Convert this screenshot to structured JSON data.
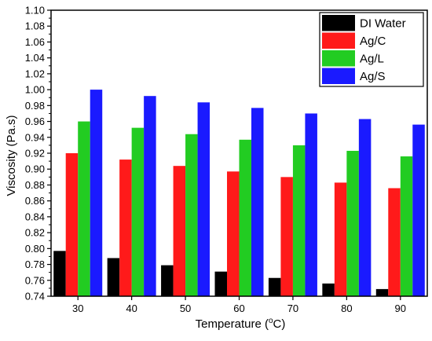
{
  "chart_data": {
    "type": "bar",
    "xlabel": "Temperature (°C)",
    "xlabel_parts": {
      "pre": "Temperature (",
      "sup": "o",
      "post": "C)"
    },
    "ylabel": "Viscosity (Pa.s)",
    "ylim": [
      0.74,
      1.1
    ],
    "y_ticks": [
      "0.74",
      "0.76",
      "0.78",
      "0.80",
      "0.82",
      "0.84",
      "0.86",
      "0.88",
      "0.90",
      "0.92",
      "0.94",
      "0.96",
      "0.98",
      "1.00",
      "1.02",
      "1.04",
      "1.06",
      "1.08",
      "1.10"
    ],
    "categories": [
      "30",
      "40",
      "50",
      "60",
      "70",
      "80",
      "90"
    ],
    "series": [
      {
        "name": "DI Water",
        "color": "#000000",
        "values": [
          0.797,
          0.788,
          0.779,
          0.771,
          0.763,
          0.756,
          0.749
        ]
      },
      {
        "name": "Ag/C",
        "color": "#ff1a1a",
        "values": [
          0.92,
          0.912,
          0.904,
          0.897,
          0.89,
          0.883,
          0.876
        ]
      },
      {
        "name": "Ag/L",
        "color": "#22cc22",
        "values": [
          0.96,
          0.952,
          0.944,
          0.937,
          0.93,
          0.923,
          0.916
        ]
      },
      {
        "name": "Ag/S",
        "color": "#1a1aff",
        "values": [
          1.0,
          0.992,
          0.984,
          0.977,
          0.97,
          0.963,
          0.956
        ]
      }
    ],
    "legend_position": "top-right",
    "grid": false
  }
}
